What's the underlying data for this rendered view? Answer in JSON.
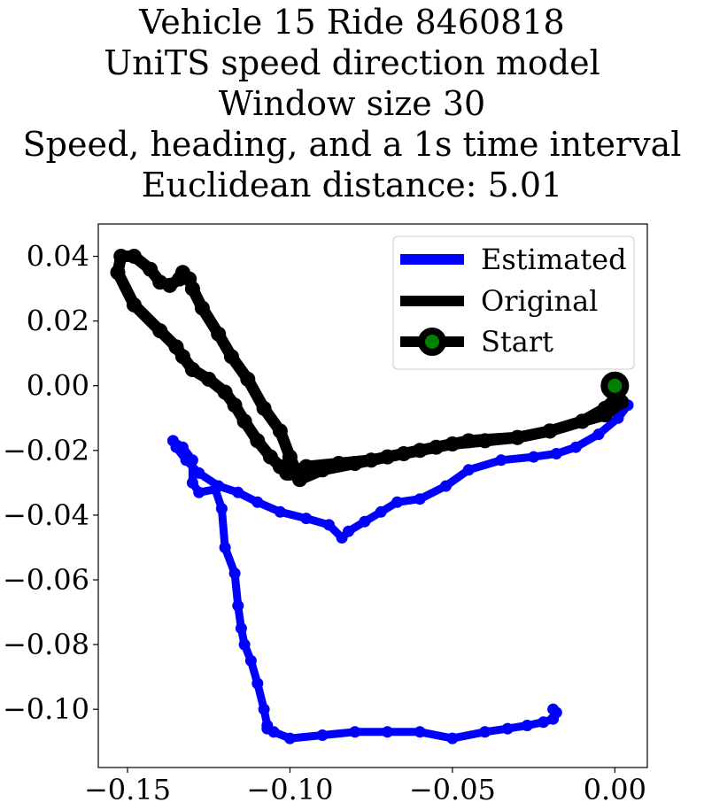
{
  "chart_data": {
    "type": "line",
    "title_lines": [
      "Vehicle 15 Ride 8460818",
      "UniTS speed direction model",
      "Window size 30",
      "Speed, heading, and a 1s time interval",
      "Euclidean distance: 5.01"
    ],
    "xlabel": "",
    "ylabel": "",
    "xlim": [
      -0.159,
      0.01
    ],
    "ylim": [
      -0.118,
      0.05
    ],
    "xticks": [
      -0.15,
      -0.1,
      -0.05,
      0.0
    ],
    "xtick_labels": [
      "−0.15",
      "−0.10",
      "−0.05",
      "0.00"
    ],
    "yticks": [
      0.04,
      0.02,
      0.0,
      -0.02,
      -0.04,
      -0.06,
      -0.08,
      -0.1
    ],
    "ytick_labels": [
      "0.04",
      "0.02",
      "0.00",
      "−0.02",
      "−0.04",
      "−0.06",
      "−0.08",
      "−0.10"
    ],
    "grid": false,
    "legend_position": "upper right",
    "legend": [
      "Estimated",
      "Original",
      "Start"
    ],
    "colors": {
      "estimated": "#0000ff",
      "original": "#000000",
      "start_marker": "#008000",
      "start_edge": "#000000"
    },
    "series": [
      {
        "name": "Estimated",
        "x": [
          0.004,
          0.001,
          -0.005,
          -0.012,
          -0.018,
          -0.025,
          -0.035,
          -0.045,
          -0.052,
          -0.06,
          -0.067,
          -0.072,
          -0.077,
          -0.082,
          -0.084,
          -0.088,
          -0.095,
          -0.103,
          -0.11,
          -0.116,
          -0.122,
          -0.128,
          -0.132,
          -0.135,
          -0.136,
          -0.133,
          -0.13,
          -0.13,
          -0.128,
          -0.123,
          -0.121,
          -0.12,
          -0.117,
          -0.116,
          -0.115,
          -0.114,
          -0.112,
          -0.11,
          -0.108,
          -0.107,
          -0.107,
          -0.105,
          -0.1,
          -0.09,
          -0.08,
          -0.07,
          -0.06,
          -0.05,
          -0.04,
          -0.033,
          -0.027,
          -0.022,
          -0.019,
          -0.018,
          -0.019
        ],
        "y": [
          -0.006,
          -0.01,
          -0.015,
          -0.019,
          -0.021,
          -0.022,
          -0.023,
          -0.026,
          -0.031,
          -0.035,
          -0.036,
          -0.039,
          -0.042,
          -0.045,
          -0.047,
          -0.043,
          -0.041,
          -0.039,
          -0.036,
          -0.033,
          -0.031,
          -0.027,
          -0.023,
          -0.019,
          -0.017,
          -0.019,
          -0.023,
          -0.03,
          -0.033,
          -0.032,
          -0.038,
          -0.05,
          -0.058,
          -0.068,
          -0.075,
          -0.08,
          -0.085,
          -0.092,
          -0.1,
          -0.105,
          -0.106,
          -0.107,
          -0.109,
          -0.108,
          -0.107,
          -0.107,
          -0.107,
          -0.109,
          -0.107,
          -0.106,
          -0.105,
          -0.104,
          -0.103,
          -0.101,
          -0.1
        ]
      },
      {
        "name": "Original",
        "x": [
          0.0,
          0.002,
          -0.003,
          -0.01,
          -0.02,
          -0.03,
          -0.045,
          -0.055,
          -0.065,
          -0.075,
          -0.085,
          -0.095,
          -0.1,
          -0.101,
          -0.103,
          -0.106,
          -0.11,
          -0.114,
          -0.117,
          -0.12,
          -0.125,
          -0.13,
          -0.133,
          -0.135,
          -0.14,
          -0.148,
          -0.153,
          -0.152,
          -0.148,
          -0.143,
          -0.14,
          -0.137,
          -0.134,
          -0.133,
          -0.131,
          -0.13,
          -0.127,
          -0.122,
          -0.118,
          -0.113,
          -0.108,
          -0.103,
          -0.1,
          -0.097,
          -0.09,
          -0.08,
          -0.07,
          -0.06,
          -0.05,
          -0.04,
          -0.03,
          -0.02,
          -0.01,
          -0.003,
          0.0
        ],
        "y": [
          0.0,
          -0.005,
          -0.009,
          -0.011,
          -0.014,
          -0.016,
          -0.017,
          -0.019,
          -0.021,
          -0.023,
          -0.024,
          -0.025,
          -0.027,
          -0.027,
          -0.025,
          -0.022,
          -0.017,
          -0.011,
          -0.006,
          -0.002,
          0.002,
          0.005,
          0.009,
          0.012,
          0.017,
          0.025,
          0.035,
          0.04,
          0.04,
          0.036,
          0.032,
          0.031,
          0.033,
          0.035,
          0.033,
          0.03,
          0.024,
          0.016,
          0.009,
          0.002,
          -0.007,
          -0.014,
          -0.022,
          -0.029,
          -0.026,
          -0.024,
          -0.022,
          -0.02,
          -0.018,
          -0.017,
          -0.016,
          -0.014,
          -0.011,
          -0.007,
          -0.004
        ]
      }
    ],
    "start_point": {
      "name": "Start",
      "x": 0.0,
      "y": 0.0
    }
  }
}
